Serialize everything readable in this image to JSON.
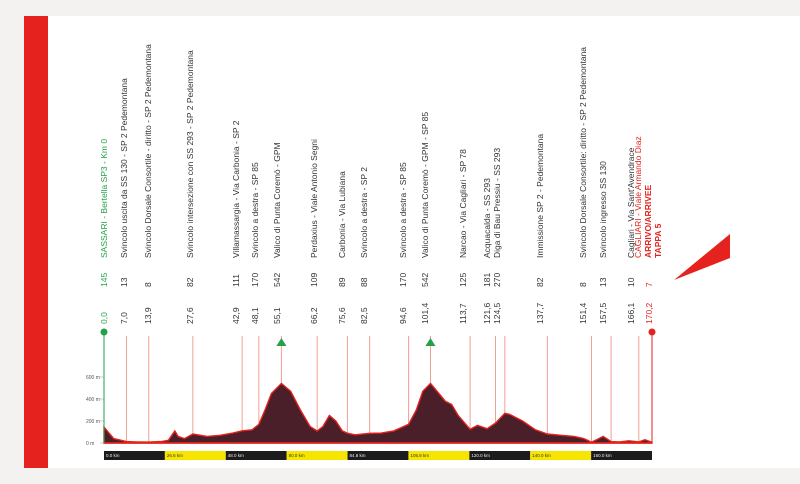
{
  "stage": {
    "km_col_header": "",
    "points": [
      {
        "km": "0,0",
        "alt": "145",
        "name": "SASSARI - Bertella SP3 - Km 0",
        "color": "#23a04a",
        "x": 104
      },
      {
        "km": "7,0",
        "alt": "13",
        "name": "Svincolo uscita da SS 130 - SP 2 Pedemontana",
        "color": "#333333",
        "x": 124
      },
      {
        "km": "13,9",
        "alt": "8",
        "name": "Svincolo Dorsale Consortile - diritto - SP 2 Pedemontana",
        "color": "#333333",
        "x": 148
      },
      {
        "km": "27,6",
        "alt": "82",
        "name": "Svincolo intersezione con SS 293 - SP 2 Pedemontana",
        "color": "#333333",
        "x": 190
      },
      {
        "km": "42,9",
        "alt": "111",
        "name": "Villamassargia - Via Carbonia - SP 2",
        "color": "#333333",
        "x": 236
      },
      {
        "km": "48,1",
        "alt": "170",
        "name": "Svincolo a destra - SP 85",
        "color": "#333333",
        "x": 255
      },
      {
        "km": "55,1",
        "alt": "542",
        "name": "Valico di Punta Coremò - GPM",
        "color": "#333333",
        "x": 277
      },
      {
        "km": "66,2",
        "alt": "109",
        "name": "Perdaxius - Viale Antonio Segni",
        "color": "#333333",
        "x": 314
      },
      {
        "km": "75,6",
        "alt": "89",
        "name": "Carbonia - Via Lubiana",
        "color": "#333333",
        "x": 342
      },
      {
        "km": "82,5",
        "alt": "88",
        "name": "Svincolo a destra - SP 2",
        "color": "#333333",
        "x": 364
      },
      {
        "km": "94,6",
        "alt": "170",
        "name": "Svincolo a destra - SP 85",
        "color": "#333333",
        "x": 403
      },
      {
        "km": "101,4",
        "alt": "542",
        "name": "Valico di Punta Coremò - GPM - SP 85",
        "color": "#333333",
        "x": 425
      },
      {
        "km": "113,7",
        "alt": "125",
        "name": "Narcao - Via Cagliari - SP 78",
        "color": "#333333",
        "x": 463
      },
      {
        "km": "121,6",
        "alt": "181",
        "name": "Acquacalda - SS 293",
        "color": "#333333",
        "x": 487
      },
      {
        "km": "124,5",
        "alt": "270",
        "name": "Diga di Bau Pressiu - SS 293",
        "color": "#333333",
        "x": 497
      },
      {
        "km": "137,7",
        "alt": "82",
        "name": "Immissione SP 2 - Pedemontana",
        "color": "#333333",
        "x": 540
      },
      {
        "km": "151,4",
        "alt": "8",
        "name": "Svincolo Dorsale Consortile: diritto - SP 2 Pedemontana",
        "color": "#333333",
        "x": 583
      },
      {
        "km": "157,5",
        "alt": "13",
        "name": "Svincolo ingresso SS 130",
        "color": "#333333",
        "x": 603
      },
      {
        "km": "166,1",
        "alt": "10",
        "name": "Cagliari - Via Sant'Avendrace",
        "color": "#333333",
        "x": 631
      },
      {
        "km": "170,2",
        "alt": "7",
        "name": "CAGLIARI - Viale Armando Diaz",
        "name2": "ARRIVO/ARRIVEE",
        "name3": "TAPPA 5",
        "color": "#e5221d",
        "x": 649
      }
    ],
    "y_ticks": [
      "600 m",
      "400 m",
      "200 m",
      "0 m"
    ],
    "km_bar": [
      "0.0 km",
      "26.6 km",
      "48.0 km",
      "80.0 km",
      "84.8 km",
      "105.8 km",
      "120.0 km",
      "140.0 km",
      "160.0 km"
    ]
  },
  "colors": {
    "accent_red": "#e5221d",
    "profile_fill": "#4a1f2a",
    "km_bar_dark": "#1c1c1c",
    "km_bar_yellow": "#f6e500",
    "gpm_green": "#23a04a"
  }
}
